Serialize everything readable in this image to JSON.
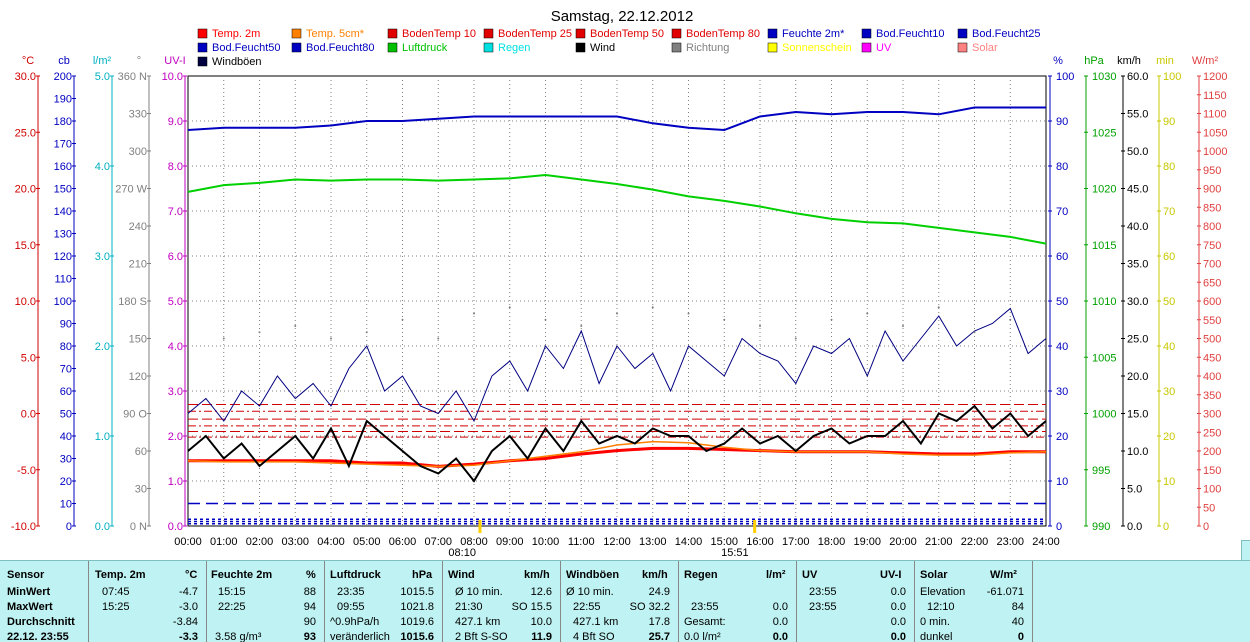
{
  "chart_data": {
    "type": "line",
    "title": "Samstag, 22.12.2012",
    "x": [
      "00:00",
      "01:00",
      "02:00",
      "03:00",
      "04:00",
      "05:00",
      "06:00",
      "07:00",
      "08:00",
      "09:00",
      "10:00",
      "11:00",
      "12:00",
      "13:00",
      "14:00",
      "15:00",
      "16:00",
      "17:00",
      "18:00",
      "19:00",
      "20:00",
      "21:00",
      "22:00",
      "23:00",
      "24:00"
    ],
    "axes": [
      {
        "unit": "°C",
        "color": "#d00000",
        "ticks": [
          "30.0",
          "25.0",
          "20.0",
          "15.0",
          "10.0",
          "5.0",
          "0.0",
          "-5.0",
          "-10.0"
        ],
        "range": [
          -10,
          30
        ]
      },
      {
        "unit": "cb",
        "color": "#0000c0",
        "ticks": [
          "200",
          "190",
          "180",
          "170",
          "160",
          "150",
          "140",
          "130",
          "120",
          "110",
          "100",
          "90",
          "80",
          "70",
          "60",
          "50",
          "40",
          "30",
          "20",
          "10",
          "0"
        ],
        "range": [
          0,
          200
        ]
      },
      {
        "unit": "l/m²",
        "color": "#00b0c0",
        "ticks": [
          "5.0",
          "4.0",
          "3.0",
          "2.0",
          "1.0",
          "0.0"
        ],
        "range": [
          0,
          5
        ]
      },
      {
        "unit": "°",
        "color": "#808080",
        "ticks": [
          "360 N",
          "330",
          "300",
          "270 W",
          "240",
          "210",
          "180 S",
          "150",
          "120",
          "90 O",
          "60",
          "30",
          "0 N"
        ],
        "range": [
          0,
          360
        ]
      },
      {
        "unit": "UV-I",
        "color": "#c000c0",
        "ticks": [
          "10.0",
          "9.0",
          "8.0",
          "7.0",
          "6.0",
          "5.0",
          "4.0",
          "3.0",
          "2.0",
          "1.0",
          "0.0"
        ],
        "range": [
          0,
          10
        ]
      },
      {
        "unit": "%",
        "color": "#0000c0",
        "ticks": [
          "100",
          "90",
          "80",
          "70",
          "60",
          "50",
          "40",
          "30",
          "20",
          "10",
          "0"
        ],
        "range": [
          0,
          100
        ]
      },
      {
        "unit": "hPa",
        "color": "#00a000",
        "ticks": [
          "1030",
          "1025",
          "1020",
          "1015",
          "1010",
          "1005",
          "1000",
          "995",
          "990"
        ],
        "range": [
          990,
          1030
        ]
      },
      {
        "unit": "km/h",
        "color": "#000000",
        "ticks": [
          "60.0",
          "55.0",
          "50.0",
          "45.0",
          "40.0",
          "35.0",
          "30.0",
          "25.0",
          "20.0",
          "15.0",
          "10.0",
          "5.0",
          "0.0"
        ],
        "range": [
          0,
          60
        ]
      },
      {
        "unit": "min",
        "color": "#c8c800",
        "ticks": [
          "100",
          "90",
          "80",
          "70",
          "60",
          "50",
          "40",
          "30",
          "20",
          "10",
          "0"
        ],
        "range": [
          0,
          100
        ]
      },
      {
        "unit": "W/m²",
        "color": "#e04040",
        "ticks": [
          "1200",
          "1150",
          "1100",
          "1050",
          "1000",
          "950",
          "900",
          "850",
          "800",
          "750",
          "700",
          "650",
          "600",
          "550",
          "500",
          "450",
          "400",
          "350",
          "300",
          "250",
          "200",
          "150",
          "100",
          "50",
          "0"
        ],
        "range": [
          0,
          1200
        ]
      }
    ],
    "legend": [
      {
        "name": "Temp. 2m",
        "color": "#ff0000"
      },
      {
        "name": "Temp. 5cm*",
        "color": "#ff8000"
      },
      {
        "name": "BodenTemp 10",
        "color": "#e00000"
      },
      {
        "name": "BodenTemp 25",
        "color": "#e00000"
      },
      {
        "name": "BodenTemp 50",
        "color": "#e00000"
      },
      {
        "name": "BodenTemp 80",
        "color": "#e00000"
      },
      {
        "name": "Feuchte 2m*",
        "color": "#0000c0"
      },
      {
        "name": "Bod.Feucht10",
        "color": "#0000c0"
      },
      {
        "name": "Bod.Feucht25",
        "color": "#0000c0"
      },
      {
        "name": "Bod.Feucht50",
        "color": "#0000c0"
      },
      {
        "name": "Bod.Feucht80",
        "color": "#0000c0"
      },
      {
        "name": "Luftdruck",
        "color": "#00c000"
      },
      {
        "name": "Regen",
        "color": "#00e0e0"
      },
      {
        "name": "Wind",
        "color": "#000000"
      },
      {
        "name": "Richtung",
        "color": "#808080"
      },
      {
        "name": "Sonnenschein",
        "color": "#ffff00"
      },
      {
        "name": "UV",
        "color": "#ff00ff"
      },
      {
        "name": "Solar",
        "color": "#ff8080"
      },
      {
        "name": "Windböen",
        "color": "#000040"
      }
    ],
    "series": [
      {
        "name": "Feuchte 2m*",
        "axis": "%",
        "color": "#0000c0",
        "x": [
          0,
          1,
          2,
          3,
          4,
          5,
          6,
          7,
          8,
          9,
          10,
          11,
          12,
          13,
          14,
          15,
          16,
          17,
          18,
          19,
          20,
          21,
          22,
          23,
          24
        ],
        "y": [
          88,
          88.5,
          88.5,
          88.5,
          89,
          90,
          90,
          90.5,
          91,
          91,
          91,
          91,
          91,
          89.5,
          88.5,
          88,
          91,
          92,
          91.5,
          92,
          92,
          91.5,
          93,
          93,
          93
        ]
      },
      {
        "name": "Luftdruck",
        "axis": "hPa",
        "color": "#00d000",
        "x": [
          0,
          1,
          2,
          3,
          4,
          5,
          6,
          7,
          8,
          9,
          10,
          11,
          12,
          13,
          14,
          15,
          16,
          17,
          18,
          19,
          20,
          21,
          22,
          23,
          24
        ],
        "y": [
          1019.7,
          1020.3,
          1020.5,
          1020.8,
          1020.7,
          1020.8,
          1020.8,
          1020.7,
          1020.8,
          1020.9,
          1021.2,
          1020.8,
          1020.4,
          1019.9,
          1019.3,
          1018.9,
          1018.4,
          1017.8,
          1017.3,
          1017,
          1016.9,
          1016.5,
          1016.1,
          1015.7,
          1015.1
        ]
      },
      {
        "name": "Temp. 2m",
        "axis": "°C",
        "color": "#ff0000",
        "x": [
          0,
          1,
          2,
          3,
          4,
          5,
          6,
          7,
          8,
          9,
          10,
          11,
          12,
          13,
          14,
          15,
          16,
          17,
          18,
          19,
          20,
          21,
          22,
          23,
          24
        ],
        "y": [
          -4.2,
          -4.2,
          -4.2,
          -4.2,
          -4.2,
          -4.4,
          -4.4,
          -4.7,
          -4.5,
          -4.2,
          -4.0,
          -3.6,
          -3.3,
          -3.1,
          -3.1,
          -3.2,
          -3.3,
          -3.4,
          -3.4,
          -3.4,
          -3.5,
          -3.6,
          -3.6,
          -3.4,
          -3.4
        ]
      },
      {
        "name": "Temp. 5cm*",
        "axis": "°C",
        "color": "#ff8000",
        "x": [
          0,
          1,
          2,
          3,
          4,
          5,
          6,
          7,
          8,
          9,
          10,
          11,
          12,
          13,
          14,
          15,
          16,
          17,
          18,
          19,
          20,
          21,
          22,
          23,
          24
        ],
        "y": [
          -4.2,
          -4.3,
          -4.3,
          -4.3,
          -4.4,
          -4.5,
          -4.6,
          -4.7,
          -4.6,
          -4.2,
          -3.8,
          -3.4,
          -2.8,
          -2.5,
          -2.6,
          -3.0,
          -3.3,
          -3.4,
          -3.4,
          -3.4,
          -3.6,
          -3.7,
          -3.7,
          -3.5,
          -3.4
        ]
      },
      {
        "name": "Wind",
        "axis": "km/h",
        "color": "#000000",
        "x": [
          0,
          0.5,
          1,
          1.5,
          2,
          2.5,
          3,
          3.5,
          4,
          4.5,
          5,
          5.5,
          6,
          6.5,
          7,
          7.5,
          8,
          8.5,
          9,
          9.5,
          10,
          10.5,
          11,
          11.5,
          12,
          12.5,
          13,
          13.5,
          14,
          14.5,
          15,
          15.5,
          16,
          16.5,
          17,
          17.5,
          18,
          18.5,
          19,
          19.5,
          20,
          20.5,
          21,
          21.5,
          22,
          22.5,
          23,
          23.5,
          24
        ],
        "y": [
          10,
          12,
          9,
          11,
          8,
          10,
          12,
          9,
          13,
          8,
          14,
          12,
          10,
          8,
          7,
          9,
          6,
          10,
          12,
          9,
          13,
          10,
          14,
          11,
          12,
          11,
          13,
          12,
          12,
          10,
          11,
          13,
          11,
          12,
          10,
          12,
          13,
          11,
          12,
          12,
          14,
          11,
          15,
          14,
          16,
          13,
          15,
          12,
          14
        ]
      },
      {
        "name": "Windböen",
        "axis": "km/h",
        "color": "#000080",
        "x": [
          0,
          0.5,
          1,
          1.5,
          2,
          2.5,
          3,
          3.5,
          4,
          4.5,
          5,
          5.5,
          6,
          6.5,
          7,
          7.5,
          8,
          8.5,
          9,
          9.5,
          10,
          10.5,
          11,
          11.5,
          12,
          12.5,
          13,
          13.5,
          14,
          14.5,
          15,
          15.5,
          16,
          16.5,
          17,
          17.5,
          18,
          18.5,
          19,
          19.5,
          20,
          20.5,
          21,
          21.5,
          22,
          22.5,
          23,
          23.5,
          24
        ],
        "y": [
          15,
          17,
          14,
          18,
          16,
          20,
          17,
          19,
          16,
          21,
          24,
          18,
          20,
          16,
          15,
          18,
          14,
          20,
          22,
          18,
          24,
          21,
          26,
          19,
          24,
          21,
          23,
          18,
          24,
          22,
          20,
          25,
          23,
          22,
          19,
          24,
          23,
          25,
          20,
          26,
          22,
          25,
          28,
          24,
          26,
          27,
          29,
          23,
          25
        ]
      },
      {
        "name": "Richtung",
        "axis": "°",
        "color": "#808080",
        "x": [
          1,
          2,
          3,
          4,
          5,
          6,
          7,
          8,
          9,
          10,
          11,
          12,
          13,
          14,
          15,
          16,
          17,
          18,
          19,
          20,
          21,
          22,
          23
        ],
        "y": [
          150,
          155,
          160,
          150,
          155,
          165,
          150,
          170,
          175,
          165,
          160,
          170,
          175,
          170,
          165,
          160,
          150,
          165,
          170,
          160,
          175,
          155,
          165
        ]
      }
    ],
    "ref_lines_red_C": [
      0.8,
      0.2,
      -0.5,
      -1.1,
      -1.6,
      -2.1
    ],
    "ref_lines_blue_cb": [
      10,
      3,
      2,
      1
    ],
    "sun": {
      "rise": "08:10",
      "set": "15:51"
    }
  },
  "stats": {
    "headers": {
      "sensor": "Sensor",
      "temp": "Temp. 2m",
      "temp_unit": "°C",
      "hum": "Feuchte 2m",
      "hum_unit": "%",
      "press": "Luftdruck",
      "press_unit": "hPa",
      "wind": "Wind",
      "wind_unit": "km/h",
      "gust": "Windböen",
      "gust_unit": "km/h",
      "rain": "Regen",
      "rain_unit": "l/m²",
      "uv": "UV",
      "uv_unit": "UV-I",
      "solar": "Solar",
      "solar_unit": "W/m²"
    },
    "rows": [
      {
        "label": "MinWert",
        "temp_t": "07:45",
        "temp_v": "-4.7",
        "hum_t": "15:15",
        "hum_v": "88",
        "press_t": "23:35",
        "press_v": "1015.5",
        "wind_t": "Ø 10 min.",
        "wind_v": "12.6",
        "gust_t": "Ø 10 min.",
        "gust_v": "24.9",
        "rain_t": "",
        "rain_v": "",
        "uv_t": "23:55",
        "uv_v": "0.0",
        "solar_t": "Elevation",
        "solar_v": "-61.071"
      },
      {
        "label": "MaxWert",
        "temp_t": "15:25",
        "temp_v": "-3.0",
        "hum_t": "22:25",
        "hum_v": "94",
        "press_t": "09:55",
        "press_v": "1021.8",
        "wind_t": "21:30",
        "wind_v": "SO 15.5",
        "gust_t": "22:55",
        "gust_v": "SO 32.2",
        "rain_t": "23:55",
        "rain_v": "0.0",
        "uv_t": "23:55",
        "uv_v": "0.0",
        "solar_t": "12:10",
        "solar_v": "84"
      },
      {
        "label": "Durchschnitt",
        "temp_t": "",
        "temp_v": "-3.84",
        "hum_t": "",
        "hum_v": "90",
        "press_t": "^0.9hPa/h",
        "press_v": "1019.6",
        "wind_t": "427.1 km",
        "wind_v": "10.0",
        "gust_t": "427.1 km",
        "gust_v": "17.8",
        "rain_t": "Gesamt:",
        "rain_v": "0.0",
        "uv_t": "",
        "uv_v": "0.0",
        "solar_t": "0 min.",
        "solar_v": "40"
      },
      {
        "label": "22.12. 23:55",
        "temp_t": "",
        "temp_v": "-3.3",
        "hum_t": "3.58 g/m³",
        "hum_v": "93",
        "press_t": "veränderlich",
        "press_v": "1015.6",
        "wind_t": "2 Bft S-SO",
        "wind_v": "11.9",
        "gust_t": "4 Bft SO",
        "gust_v": "25.7",
        "rain_t": "0.0 l/m²",
        "rain_v": "0.0",
        "uv_t": "",
        "uv_v": "0.0",
        "solar_t": "dunkel",
        "solar_v": "0"
      }
    ]
  }
}
